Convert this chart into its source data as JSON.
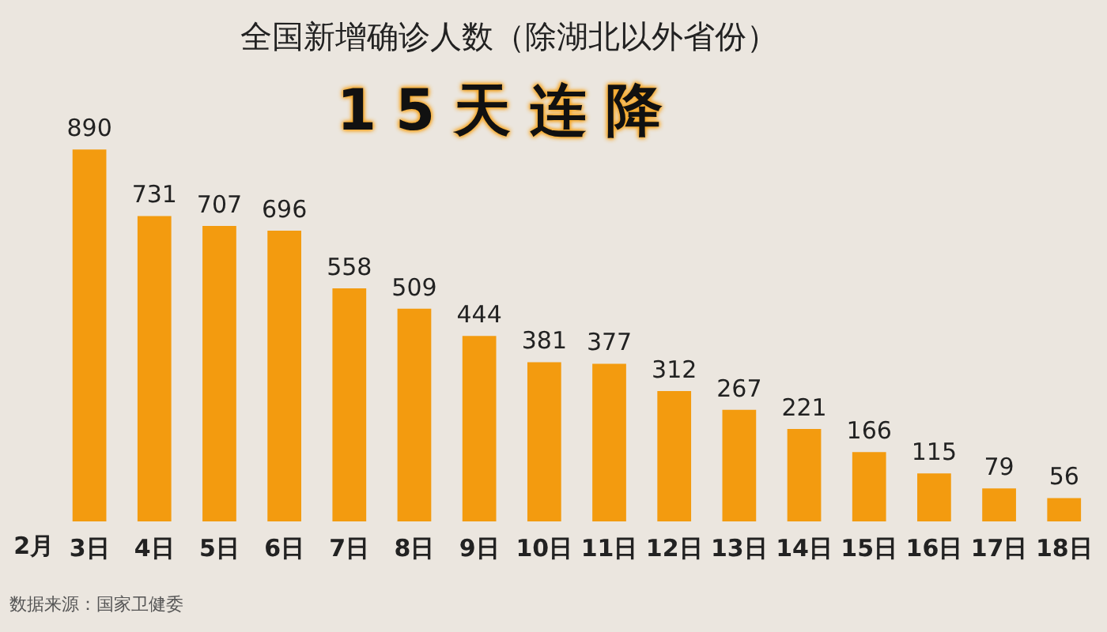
{
  "chart_data": {
    "type": "bar",
    "title": "全国新增确诊人数（除湖北以外省份）",
    "subtitle": "15天连降",
    "xlabel": "2月",
    "categories": [
      "3日",
      "4日",
      "5日",
      "6日",
      "7日",
      "8日",
      "9日",
      "10日",
      "11日",
      "12日",
      "13日",
      "14日",
      "15日",
      "16日",
      "17日",
      "18日"
    ],
    "values": [
      890,
      731,
      707,
      696,
      558,
      509,
      444,
      381,
      377,
      312,
      267,
      221,
      166,
      115,
      79,
      56
    ],
    "color": "#f39b0f",
    "data_labels": true,
    "tick_labels": "x",
    "annotations": [
      "数据来源：国家卫健委"
    ]
  }
}
